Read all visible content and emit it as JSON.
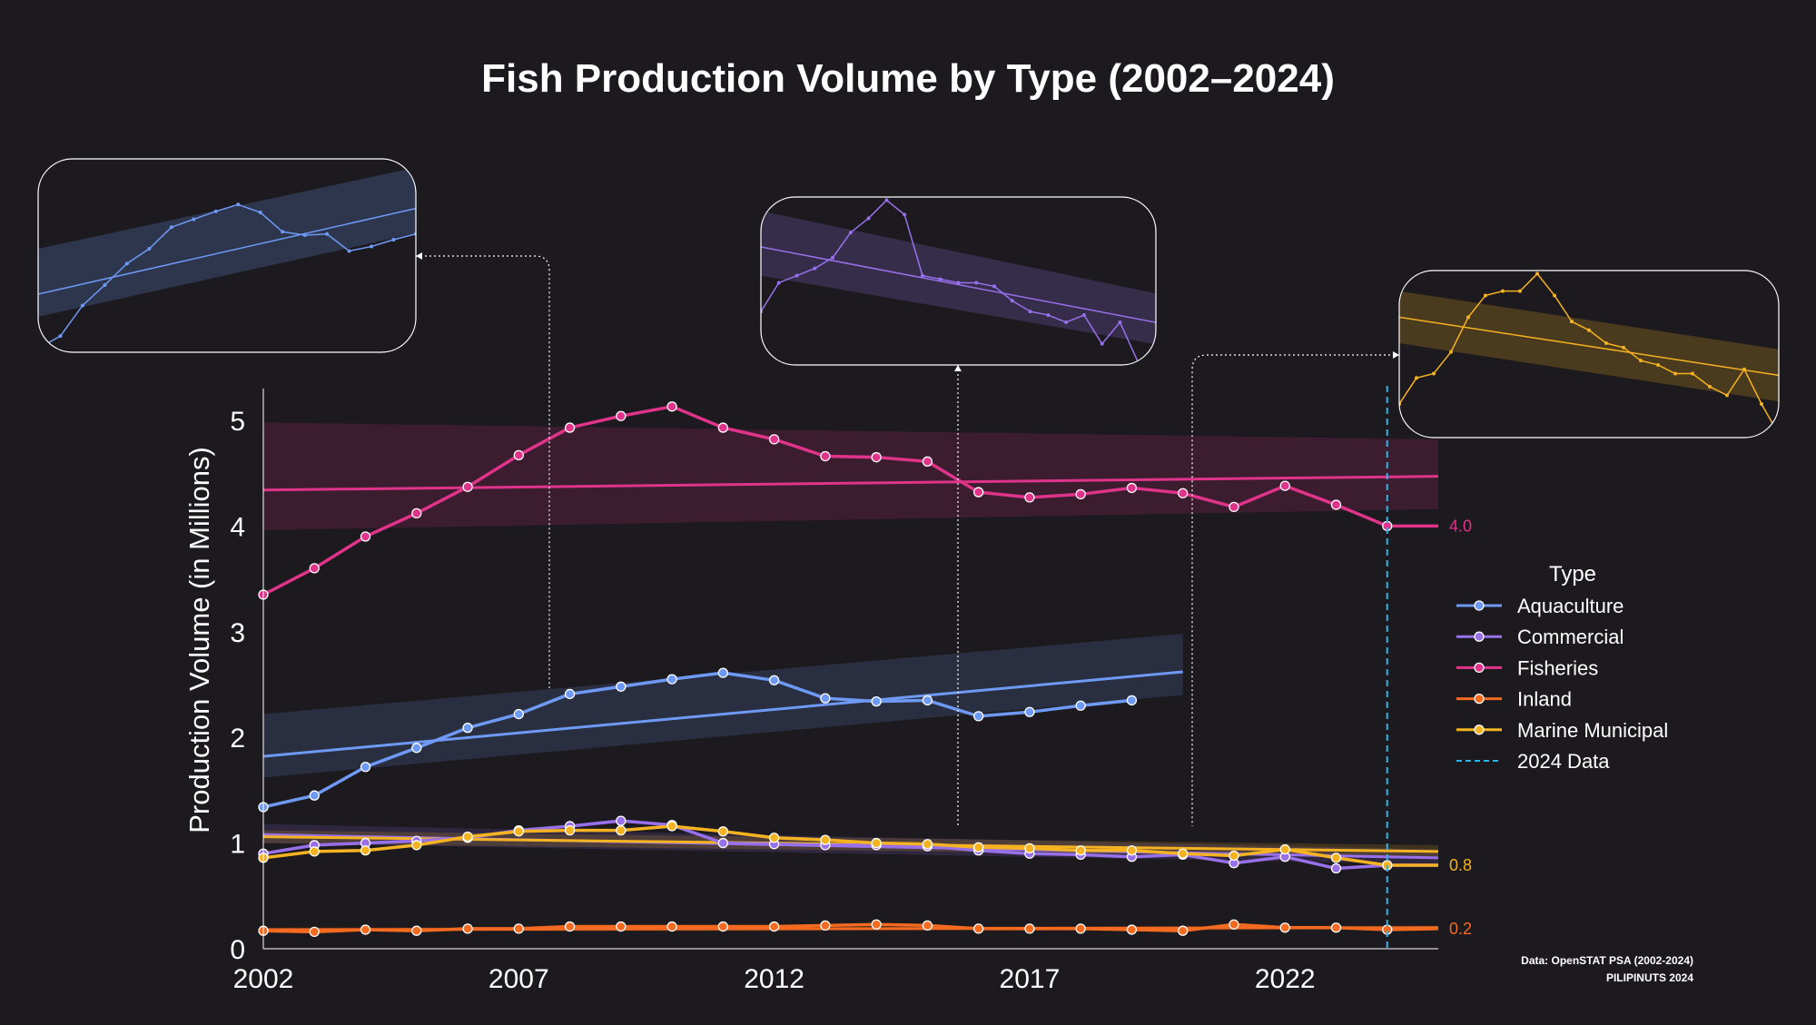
{
  "chart_data": {
    "type": "line",
    "title": "Fish Production Volume by Type (2002–2024)",
    "ylabel": "Production Volume (in Millions)",
    "xlabel": "",
    "xlim": [
      2002,
      2025
    ],
    "ylim": [
      0,
      5.3
    ],
    "x_ticks": [
      2002,
      2007,
      2012,
      2017,
      2022
    ],
    "y_ticks": [
      0,
      1,
      2,
      3,
      4,
      5
    ],
    "legend": {
      "title": "Type",
      "position": "right",
      "reference_label": "2024 Data"
    },
    "reference_line": {
      "x": 2024,
      "label": "2024 Data",
      "color": "#29b6e8"
    },
    "series": [
      {
        "name": "Aquaculture",
        "color": "#6e9af5",
        "x": [
          2002,
          2003,
          2004,
          2005,
          2006,
          2007,
          2008,
          2009,
          2010,
          2011,
          2012,
          2013,
          2014,
          2015,
          2016,
          2017,
          2018,
          2019
        ],
        "values": [
          1.34,
          1.45,
          1.72,
          1.9,
          2.09,
          2.22,
          2.41,
          2.48,
          2.55,
          2.61,
          2.54,
          2.37,
          2.34,
          2.35,
          2.2,
          2.24,
          2.3,
          2.35
        ],
        "trend": {
          "x": [
            2002,
            2020
          ],
          "y": [
            1.82,
            2.62
          ],
          "band_lower": [
            1.62,
            2.4
          ],
          "band_upper": [
            2.22,
            2.98
          ]
        }
      },
      {
        "name": "Commercial",
        "color": "#9770ea",
        "x": [
          2002,
          2003,
          2004,
          2005,
          2006,
          2007,
          2008,
          2009,
          2010,
          2011,
          2012,
          2013,
          2014,
          2015,
          2016,
          2017,
          2018,
          2019,
          2020,
          2021,
          2022,
          2023,
          2024,
          2025
        ],
        "values": [
          0.9,
          0.98,
          1.0,
          1.02,
          1.05,
          1.12,
          1.16,
          1.21,
          1.17,
          1.0,
          0.99,
          0.98,
          0.98,
          0.97,
          0.93,
          0.9,
          0.89,
          0.87,
          0.89,
          0.81,
          0.87,
          0.76,
          0.79,
          0.79
        ],
        "trend": {
          "x": [
            2002,
            2025
          ],
          "y": [
            1.08,
            0.86
          ],
          "band_lower": [
            1.0,
            0.8
          ],
          "band_upper": [
            1.18,
            0.94
          ]
        }
      },
      {
        "name": "Fisheries",
        "color": "#e0338a",
        "x": [
          2002,
          2003,
          2004,
          2005,
          2006,
          2007,
          2008,
          2009,
          2010,
          2011,
          2012,
          2013,
          2014,
          2015,
          2016,
          2017,
          2018,
          2019,
          2020,
          2021,
          2022,
          2023,
          2024,
          2025
        ],
        "values": [
          3.35,
          3.6,
          3.9,
          4.12,
          4.37,
          4.67,
          4.93,
          5.04,
          5.13,
          4.93,
          4.82,
          4.66,
          4.65,
          4.61,
          4.32,
          4.27,
          4.3,
          4.36,
          4.31,
          4.18,
          4.38,
          4.2,
          4.0,
          4.0
        ],
        "trend": {
          "x": [
            2002,
            2025
          ],
          "y": [
            4.34,
            4.47
          ],
          "band_lower": [
            3.96,
            4.16
          ],
          "band_upper": [
            4.98,
            4.82
          ]
        },
        "end_label": "4.0"
      },
      {
        "name": "Inland",
        "color": "#f46a20",
        "x": [
          2002,
          2003,
          2004,
          2005,
          2006,
          2007,
          2008,
          2009,
          2010,
          2011,
          2012,
          2013,
          2014,
          2015,
          2016,
          2017,
          2018,
          2019,
          2020,
          2021,
          2022,
          2023,
          2024,
          2025
        ],
        "values": [
          0.17,
          0.16,
          0.18,
          0.17,
          0.19,
          0.19,
          0.21,
          0.21,
          0.21,
          0.21,
          0.21,
          0.22,
          0.23,
          0.22,
          0.19,
          0.19,
          0.19,
          0.18,
          0.17,
          0.23,
          0.2,
          0.2,
          0.18,
          0.19
        ],
        "trend": {
          "x": [
            2002,
            2025
          ],
          "y": [
            0.18,
            0.2
          ],
          "band_lower": [
            0.16,
            0.18
          ],
          "band_upper": [
            0.2,
            0.22
          ]
        },
        "end_label": "0.2"
      },
      {
        "name": "Marine Municipal",
        "color": "#f5b221",
        "x": [
          2002,
          2003,
          2004,
          2005,
          2006,
          2007,
          2008,
          2009,
          2010,
          2011,
          2012,
          2013,
          2014,
          2015,
          2016,
          2017,
          2018,
          2019,
          2020,
          2021,
          2022,
          2023,
          2024,
          2025
        ],
        "values": [
          0.86,
          0.92,
          0.93,
          0.98,
          1.06,
          1.11,
          1.12,
          1.12,
          1.16,
          1.11,
          1.05,
          1.03,
          1.0,
          0.99,
          0.96,
          0.95,
          0.93,
          0.93,
          0.9,
          0.88,
          0.94,
          0.86,
          0.79,
          0.79
        ],
        "trend": {
          "x": [
            2002,
            2025
          ],
          "y": [
            1.06,
            0.92
          ],
          "band_lower": [
            1.0,
            0.86
          ],
          "band_upper": [
            1.12,
            0.98
          ]
        },
        "end_label": "0.8"
      }
    ],
    "insets": [
      {
        "series": "Aquaculture",
        "connector_year": 2011
      },
      {
        "series": "Commercial",
        "connector_year": 2016
      },
      {
        "series": "Marine Municipal",
        "connector_year": 2020
      }
    ]
  },
  "source": {
    "line1": "Data: OpenSTAT PSA (2002-2024)",
    "line2": "PILIPINUTS 2024"
  }
}
